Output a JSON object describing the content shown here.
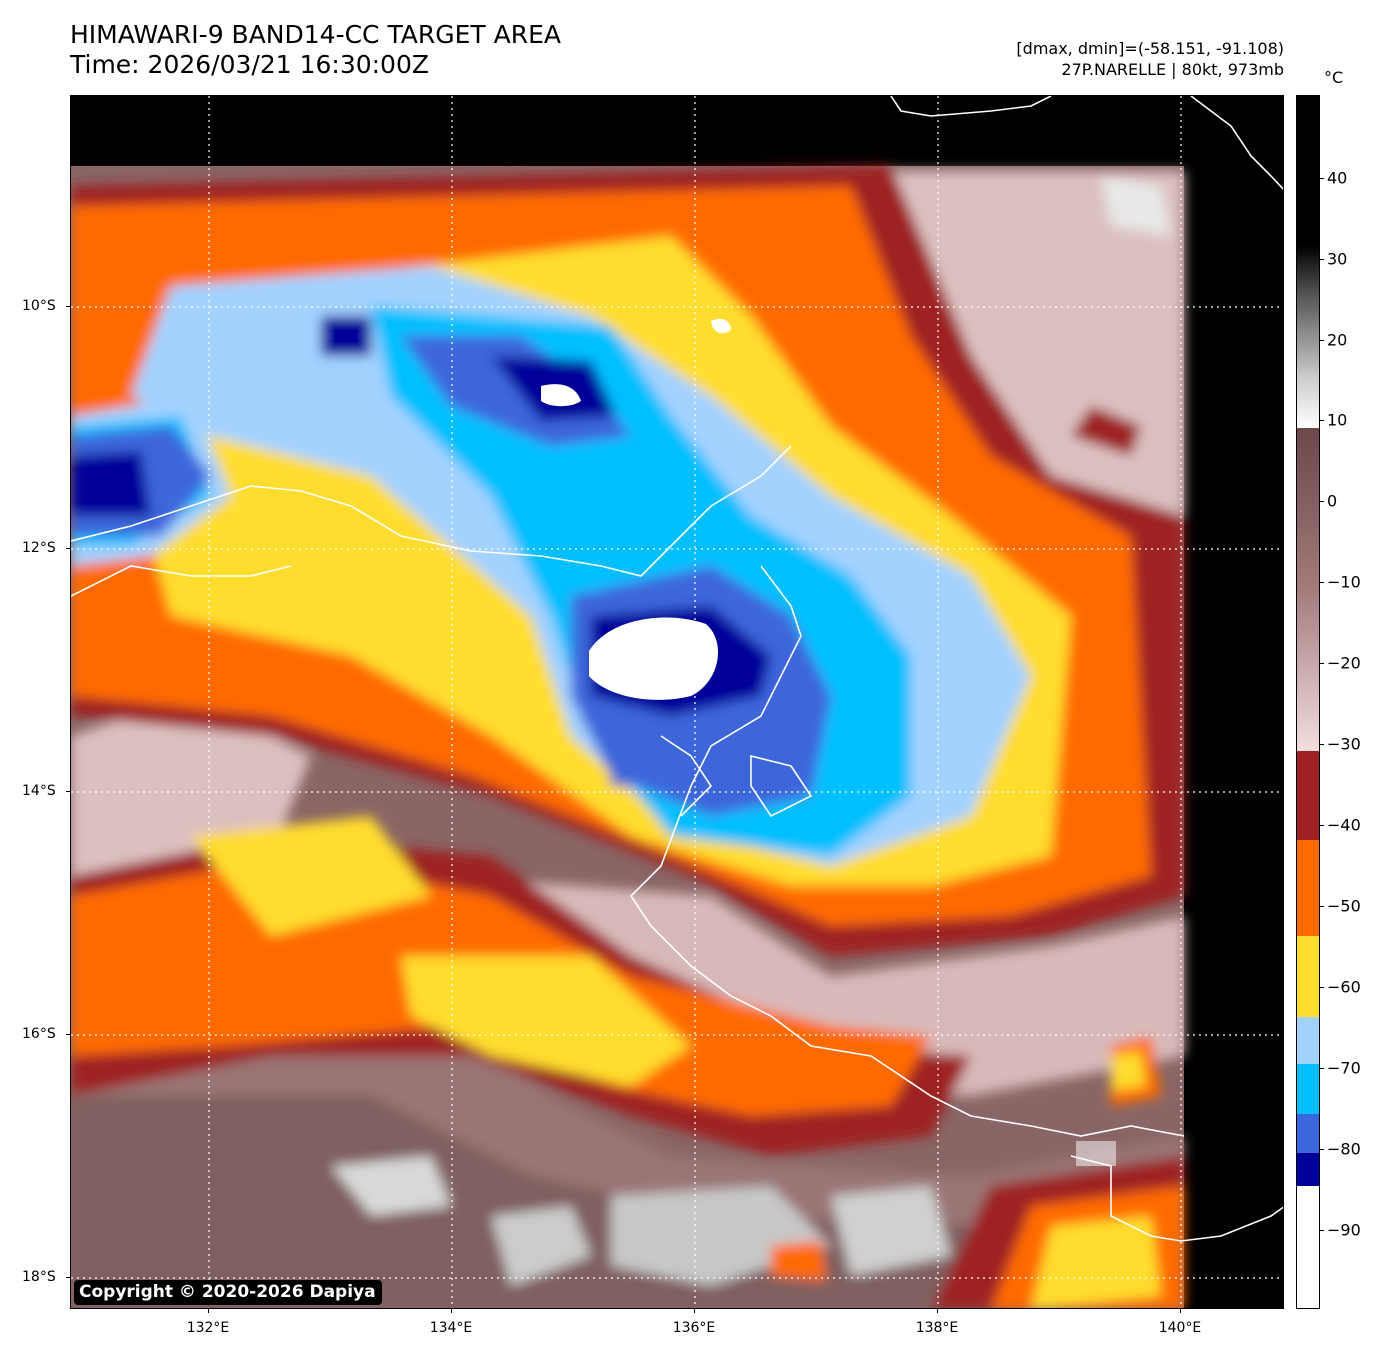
{
  "header": {
    "title_line1": "HIMAWARI-9 BAND14-CC TARGET AREA",
    "title_line2": "Time: 2026/03/21 16:30:00Z",
    "range_line": "[dmax, dmin]=(-58.151, -91.108)",
    "storm_line": "27P.NARELLE | 80kt, 973mb"
  },
  "map": {
    "copyright": "Copyright © 2020-2026 Dapiya",
    "lat_labels": [
      "10°S",
      "12°S",
      "14°S",
      "16°S",
      "18°S"
    ],
    "lon_labels": [
      "132°E",
      "134°E",
      "136°E",
      "138°E",
      "140°E"
    ],
    "coastline_color": "#ffffff",
    "gridline_color": "#ffffff"
  },
  "colorbar": {
    "unit": "°C",
    "tick_labels": [
      "40",
      "30",
      "20",
      "10",
      "0",
      "−10",
      "−20",
      "−30",
      "−40",
      "−50",
      "−60",
      "−70",
      "−80",
      "−90"
    ],
    "bands": [
      {
        "range": "above 10",
        "color": "gray-scale"
      },
      {
        "range": "10 to -30",
        "color": "#a37b7b"
      },
      {
        "range": "-30 to -40",
        "color": "#9e2121"
      },
      {
        "range": "-40 to -50",
        "color": "#ff6a00"
      },
      {
        "range": "-50 to -60",
        "color": "#ffdd2e"
      },
      {
        "range": "-60 to -65",
        "color": "#a3d2ff"
      },
      {
        "range": "-65 to -75",
        "color": "#00bfff"
      },
      {
        "range": "-75 to -80",
        "color": "#3c66db"
      },
      {
        "range": "-80 to -85",
        "color": "#000099"
      },
      {
        "range": "below -85",
        "color": "#ffffff"
      }
    ]
  }
}
